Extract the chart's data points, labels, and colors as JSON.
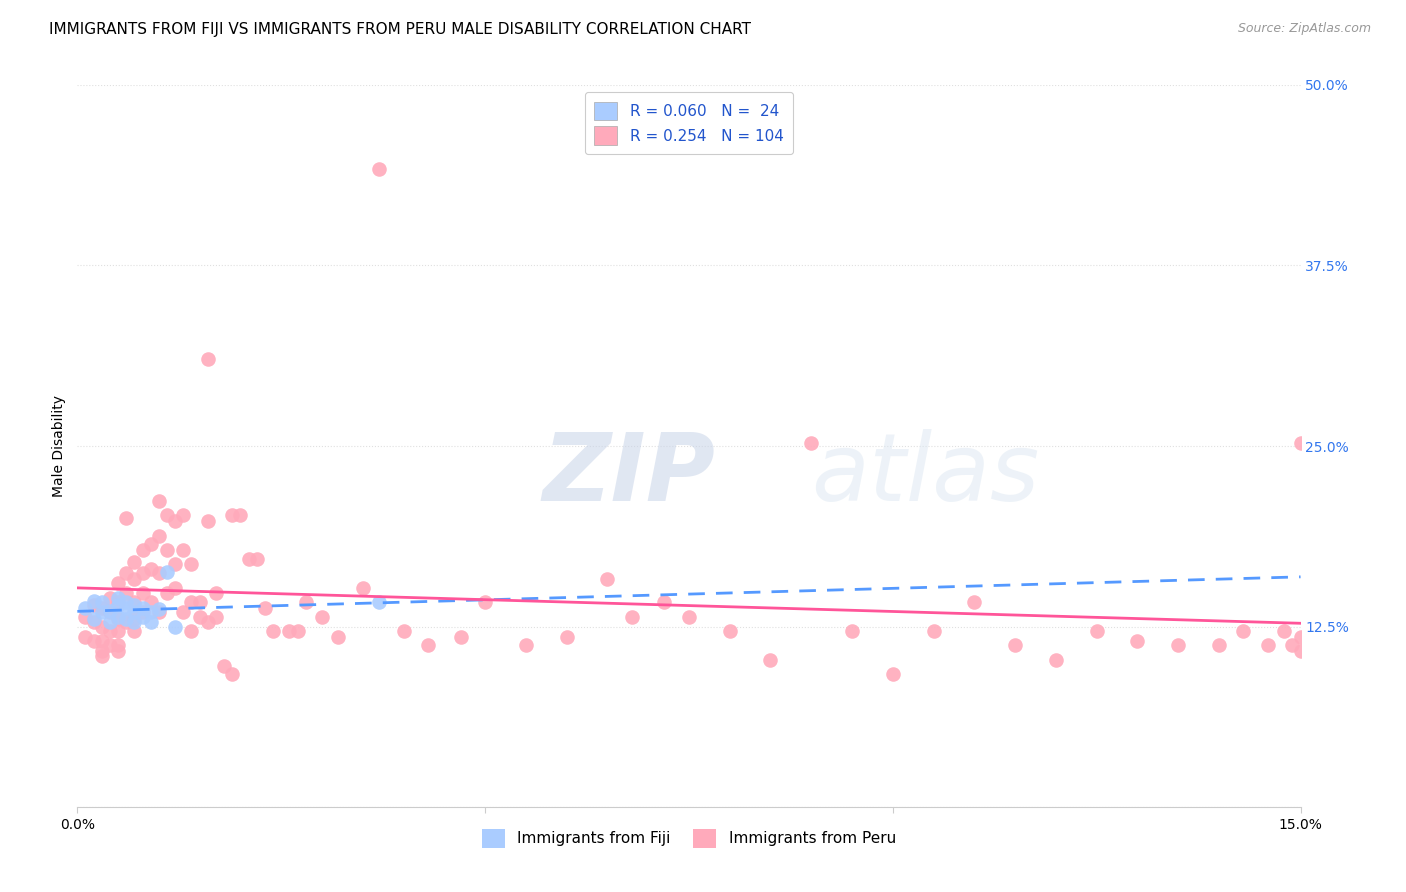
{
  "title": "IMMIGRANTS FROM FIJI VS IMMIGRANTS FROM PERU MALE DISABILITY CORRELATION CHART",
  "source": "Source: ZipAtlas.com",
  "ylabel": "Male Disability",
  "xlim": [
    0.0,
    0.15
  ],
  "ylim": [
    0.0,
    0.5
  ],
  "ytick_positions": [
    0.0,
    0.125,
    0.25,
    0.375,
    0.5
  ],
  "yticklabels": [
    "",
    "12.5%",
    "25.0%",
    "37.5%",
    "50.0%"
  ],
  "grid_color": "#e0e0e0",
  "background_color": "#ffffff",
  "fiji_color": "#aaccff",
  "peru_color": "#ffaabb",
  "fiji_R": 0.06,
  "fiji_N": 24,
  "peru_R": 0.254,
  "peru_N": 104,
  "fiji_line_color": "#5599ff",
  "peru_line_color": "#ff5599",
  "fiji_x": [
    0.001,
    0.002,
    0.002,
    0.003,
    0.003,
    0.004,
    0.004,
    0.005,
    0.005,
    0.005,
    0.006,
    0.006,
    0.006,
    0.007,
    0.007,
    0.007,
    0.008,
    0.008,
    0.009,
    0.009,
    0.01,
    0.011,
    0.012,
    0.037
  ],
  "fiji_y": [
    0.138,
    0.143,
    0.13,
    0.135,
    0.142,
    0.128,
    0.136,
    0.14,
    0.132,
    0.145,
    0.138,
    0.13,
    0.142,
    0.135,
    0.128,
    0.14,
    0.132,
    0.138,
    0.135,
    0.128,
    0.137,
    0.163,
    0.125,
    0.142
  ],
  "peru_x": [
    0.001,
    0.001,
    0.002,
    0.002,
    0.002,
    0.003,
    0.003,
    0.003,
    0.003,
    0.003,
    0.004,
    0.004,
    0.004,
    0.004,
    0.005,
    0.005,
    0.005,
    0.005,
    0.005,
    0.005,
    0.006,
    0.006,
    0.006,
    0.006,
    0.007,
    0.007,
    0.007,
    0.007,
    0.007,
    0.008,
    0.008,
    0.008,
    0.008,
    0.009,
    0.009,
    0.009,
    0.01,
    0.01,
    0.01,
    0.01,
    0.011,
    0.011,
    0.011,
    0.012,
    0.012,
    0.012,
    0.013,
    0.013,
    0.013,
    0.014,
    0.014,
    0.014,
    0.015,
    0.015,
    0.016,
    0.016,
    0.016,
    0.017,
    0.017,
    0.018,
    0.019,
    0.019,
    0.02,
    0.021,
    0.022,
    0.023,
    0.024,
    0.026,
    0.027,
    0.028,
    0.03,
    0.032,
    0.035,
    0.037,
    0.04,
    0.043,
    0.047,
    0.05,
    0.055,
    0.06,
    0.065,
    0.068,
    0.072,
    0.075,
    0.08,
    0.085,
    0.09,
    0.095,
    0.1,
    0.105,
    0.11,
    0.115,
    0.12,
    0.125,
    0.13,
    0.135,
    0.14,
    0.143,
    0.146,
    0.148,
    0.149,
    0.15,
    0.15,
    0.15
  ],
  "peru_y": [
    0.132,
    0.118,
    0.14,
    0.128,
    0.115,
    0.138,
    0.125,
    0.115,
    0.108,
    0.105,
    0.145,
    0.135,
    0.122,
    0.112,
    0.155,
    0.142,
    0.13,
    0.122,
    0.112,
    0.108,
    0.2,
    0.162,
    0.148,
    0.128,
    0.17,
    0.158,
    0.142,
    0.13,
    0.122,
    0.178,
    0.162,
    0.148,
    0.135,
    0.182,
    0.165,
    0.142,
    0.212,
    0.188,
    0.162,
    0.135,
    0.202,
    0.178,
    0.148,
    0.198,
    0.168,
    0.152,
    0.135,
    0.202,
    0.178,
    0.168,
    0.142,
    0.122,
    0.142,
    0.132,
    0.31,
    0.198,
    0.128,
    0.148,
    0.132,
    0.098,
    0.202,
    0.092,
    0.202,
    0.172,
    0.172,
    0.138,
    0.122,
    0.122,
    0.122,
    0.142,
    0.132,
    0.118,
    0.152,
    0.442,
    0.122,
    0.112,
    0.118,
    0.142,
    0.112,
    0.118,
    0.158,
    0.132,
    0.142,
    0.132,
    0.122,
    0.102,
    0.252,
    0.122,
    0.092,
    0.122,
    0.142,
    0.112,
    0.102,
    0.122,
    0.115,
    0.112,
    0.112,
    0.122,
    0.112,
    0.122,
    0.112,
    0.108,
    0.118,
    0.252
  ],
  "watermark_zip": "ZIP",
  "watermark_atlas": "atlas",
  "title_fontsize": 11,
  "axis_label_fontsize": 10,
  "tick_fontsize": 10,
  "legend_fontsize": 11
}
